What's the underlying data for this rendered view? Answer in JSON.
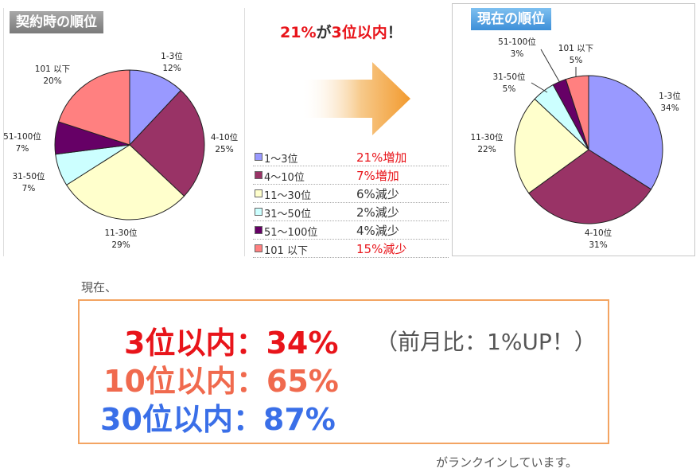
{
  "left_panel": {
    "title": "契約時の順位"
  },
  "right_panel": {
    "title": "現在の順位"
  },
  "headline": {
    "pct": "21%",
    "mid": "が",
    "rank": "3位以内",
    "end": "！"
  },
  "legend": [
    {
      "label": "1～3位",
      "change": "21%増加",
      "color": "#9999ff"
    },
    {
      "label": "4～10位",
      "change": "7%増加",
      "color": "#993366"
    },
    {
      "label": "11～30位",
      "change": "6%減少",
      "color": "#ffffcc"
    },
    {
      "label": "31～50位",
      "change": "2%減少",
      "color": "#ccffff"
    },
    {
      "label": "51～100位",
      "change": "4%減少",
      "color": "#660066"
    },
    {
      "label": "101 以下",
      "change": "15%減少",
      "color": "#ff8080"
    }
  ],
  "summary": {
    "intro": "現在、",
    "line1": "3位以内：34%",
    "line1_note": "（前月比：1%UP！）",
    "line2": "10位以内：65%",
    "line3": "30位以内：87%",
    "footer": "がランクインしています。"
  },
  "chart_data": [
    {
      "type": "pie",
      "title": "契約時の順位",
      "categories": [
        "1-3位",
        "4-10位",
        "11-30位",
        "31-50位",
        "51-100位",
        "101 以下"
      ],
      "values": [
        12,
        25,
        29,
        7,
        7,
        20
      ],
      "value_labels": [
        "12%",
        "25%",
        "29%",
        "7%",
        "7%",
        "20%"
      ],
      "colors": [
        "#9999ff",
        "#993366",
        "#ffffcc",
        "#ccffff",
        "#660066",
        "#ff8080"
      ]
    },
    {
      "type": "pie",
      "title": "現在の順位",
      "categories": [
        "1-3位",
        "4-10位",
        "11-30位",
        "31-50位",
        "51-100位",
        "101 以下"
      ],
      "values": [
        34,
        31,
        22,
        5,
        3,
        5
      ],
      "value_labels": [
        "34%",
        "31%",
        "22%",
        "5%",
        "3%",
        "5%"
      ],
      "colors": [
        "#9999ff",
        "#993366",
        "#ffffcc",
        "#ccffff",
        "#660066",
        "#ff8080"
      ]
    }
  ]
}
